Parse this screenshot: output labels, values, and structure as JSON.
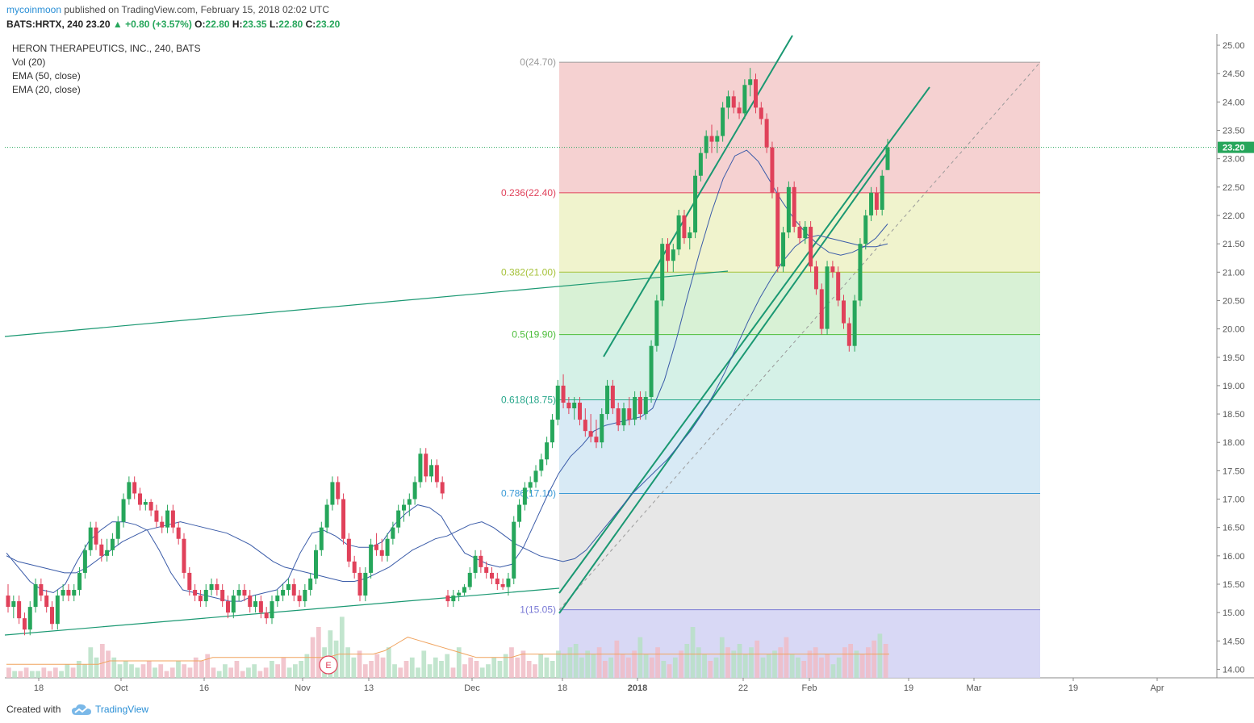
{
  "header": {
    "author": "mycoinmoon",
    "published_text": "published on TradingView.com, February 15, 2018 02:02 UTC",
    "symbol": "BATS:HRTX, 240",
    "change": "+0.80 (+3.57%)",
    "open_label": "O:",
    "open": "22.80",
    "high_label": "H:",
    "high": "23.35",
    "low_label": "L:",
    "low": "22.80",
    "close_label": "C:",
    "close": "23.20"
  },
  "legend": {
    "title": "HERON THERAPEUTICS, INC., 240, BATS",
    "indicators": [
      "Vol (20)",
      "EMA (50, close)",
      "EMA (20, close)"
    ]
  },
  "footer": {
    "created_with": "Created with",
    "brand": "TradingView"
  },
  "colors": {
    "up": "#26a65b",
    "down": "#e0415a",
    "ema": "#3a5ba8",
    "volume_ma": "#f0a35e",
    "trend": "#1a9872",
    "last_price": "#26a65b"
  },
  "chart_data": {
    "type": "candlestick",
    "symbol": "HRTX",
    "interval": "240",
    "y_axis": {
      "ylim": [
        13.85,
        25.2
      ],
      "ticks": [
        "25.00",
        "24.50",
        "24.00",
        "23.50",
        "23.00",
        "22.50",
        "22.00",
        "21.50",
        "21.00",
        "20.50",
        "20.00",
        "19.50",
        "19.00",
        "18.50",
        "18.00",
        "17.50",
        "17.00",
        "16.50",
        "16.00",
        "15.50",
        "15.00",
        "14.50",
        "14.00"
      ],
      "last_price_label": "23.20"
    },
    "x_axis": {
      "ticks": [
        "18",
        "Oct",
        "16",
        "Nov",
        "13",
        "Dec",
        "18",
        "2018",
        "22",
        "Feb",
        "19",
        "Mar",
        "19",
        "Apr"
      ]
    },
    "fibonacci": {
      "levels": [
        {
          "label": "0(24.70)",
          "ratio": 0,
          "price": 24.7,
          "color": "#9b9b9b"
        },
        {
          "label": "0.236(22.40)",
          "ratio": 0.236,
          "price": 22.4,
          "color": "#e0415a"
        },
        {
          "label": "0.382(21.00)",
          "ratio": 0.382,
          "price": 21.0,
          "color": "#a6c23a"
        },
        {
          "label": "0.5(19.90)",
          "ratio": 0.5,
          "price": 19.9,
          "color": "#4cbd3a"
        },
        {
          "label": "0.618(18.75)",
          "ratio": 0.618,
          "price": 18.75,
          "color": "#26a68a"
        },
        {
          "label": "0.786(17.10)",
          "ratio": 0.786,
          "price": 17.1,
          "color": "#3a9ad6"
        },
        {
          "label": "1(15.05)",
          "ratio": 1,
          "price": 15.05,
          "color": "#7a7ad6"
        }
      ],
      "fills": [
        "#f4cccc",
        "#eef2c8",
        "#d4f0d0",
        "#d0f0e4",
        "#d4e8f4",
        "#e4e4e4",
        "#d4d4f4"
      ]
    },
    "candles_ohlc": [
      [
        15.3,
        15.5,
        15.0,
        15.1
      ],
      [
        15.1,
        15.3,
        14.9,
        15.2
      ],
      [
        15.2,
        15.3,
        14.8,
        14.9
      ],
      [
        14.9,
        15.0,
        14.6,
        14.7
      ],
      [
        14.7,
        15.2,
        14.6,
        15.1
      ],
      [
        15.1,
        15.6,
        15.0,
        15.5
      ],
      [
        15.5,
        15.6,
        15.2,
        15.3
      ],
      [
        15.3,
        15.4,
        15.0,
        15.1
      ],
      [
        15.1,
        15.2,
        14.7,
        14.8
      ],
      [
        14.8,
        15.4,
        14.7,
        15.3
      ],
      [
        15.3,
        15.5,
        15.2,
        15.4
      ],
      [
        15.4,
        15.5,
        15.2,
        15.3
      ],
      [
        15.3,
        15.5,
        15.2,
        15.4
      ],
      [
        15.4,
        15.8,
        15.3,
        15.7
      ],
      [
        15.7,
        16.2,
        15.6,
        16.1
      ],
      [
        16.1,
        16.6,
        16.0,
        16.5
      ],
      [
        16.5,
        16.6,
        16.1,
        16.2
      ],
      [
        16.2,
        16.3,
        15.9,
        16.0
      ],
      [
        16.0,
        16.3,
        15.9,
        16.1
      ],
      [
        16.1,
        16.4,
        16.0,
        16.3
      ],
      [
        16.3,
        16.7,
        16.2,
        16.6
      ],
      [
        16.6,
        17.1,
        16.5,
        17.0
      ],
      [
        17.0,
        17.4,
        16.9,
        17.3
      ],
      [
        17.3,
        17.4,
        17.0,
        17.1
      ],
      [
        17.1,
        17.2,
        16.8,
        16.9
      ],
      [
        16.9,
        17.0,
        16.8,
        16.95
      ],
      [
        16.95,
        17.0,
        16.7,
        16.8
      ],
      [
        16.8,
        16.9,
        16.5,
        16.6
      ],
      [
        16.6,
        16.7,
        16.4,
        16.5
      ],
      [
        16.5,
        16.9,
        16.4,
        16.8
      ],
      [
        16.8,
        16.9,
        16.4,
        16.5
      ],
      [
        16.5,
        16.6,
        16.2,
        16.3
      ],
      [
        16.3,
        16.4,
        15.6,
        15.7
      ],
      [
        15.7,
        15.8,
        15.3,
        15.4
      ],
      [
        15.4,
        15.5,
        15.2,
        15.3
      ],
      [
        15.3,
        15.4,
        15.1,
        15.2
      ],
      [
        15.2,
        15.5,
        15.1,
        15.4
      ],
      [
        15.4,
        15.6,
        15.3,
        15.5
      ],
      [
        15.5,
        15.6,
        15.3,
        15.4
      ],
      [
        15.4,
        15.5,
        15.1,
        15.2
      ],
      [
        15.2,
        15.3,
        14.9,
        15.0
      ],
      [
        15.0,
        15.4,
        14.9,
        15.3
      ],
      [
        15.3,
        15.5,
        15.2,
        15.4
      ],
      [
        15.4,
        15.5,
        15.2,
        15.3
      ],
      [
        15.3,
        15.4,
        15.0,
        15.1
      ],
      [
        15.1,
        15.3,
        15.0,
        15.2
      ],
      [
        15.2,
        15.3,
        14.9,
        15.0
      ],
      [
        15.0,
        15.1,
        14.8,
        14.9
      ],
      [
        14.9,
        15.3,
        14.8,
        15.2
      ],
      [
        15.2,
        15.4,
        15.1,
        15.3
      ],
      [
        15.3,
        15.5,
        15.2,
        15.4
      ],
      [
        15.4,
        15.6,
        15.3,
        15.5
      ],
      [
        15.5,
        15.6,
        15.2,
        15.3
      ],
      [
        15.3,
        15.4,
        15.1,
        15.2
      ],
      [
        15.2,
        15.5,
        15.1,
        15.4
      ],
      [
        15.4,
        15.7,
        15.3,
        15.6
      ],
      [
        15.6,
        16.2,
        15.5,
        16.1
      ],
      [
        16.1,
        16.6,
        16.0,
        16.5
      ],
      [
        16.5,
        17.0,
        16.4,
        16.9
      ],
      [
        16.9,
        17.4,
        16.8,
        17.3
      ],
      [
        17.3,
        17.4,
        16.9,
        17.0
      ],
      [
        17.0,
        17.1,
        16.2,
        16.3
      ],
      [
        16.3,
        16.4,
        15.8,
        15.9
      ],
      [
        15.9,
        16.0,
        15.6,
        15.7
      ],
      [
        15.7,
        15.8,
        15.2,
        15.3
      ],
      [
        15.3,
        15.8,
        15.2,
        15.7
      ],
      [
        15.7,
        16.3,
        15.6,
        16.2
      ],
      [
        16.2,
        16.4,
        16.0,
        16.1
      ],
      [
        16.1,
        16.3,
        15.9,
        16.0
      ],
      [
        16.0,
        16.4,
        15.9,
        16.3
      ],
      [
        16.3,
        16.6,
        16.2,
        16.5
      ],
      [
        16.5,
        16.9,
        16.4,
        16.8
      ],
      [
        16.8,
        17.0,
        16.6,
        16.9
      ],
      [
        16.9,
        17.1,
        16.7,
        17.0
      ],
      [
        17.0,
        17.4,
        16.9,
        17.3
      ],
      [
        17.3,
        17.9,
        17.2,
        17.8
      ],
      [
        17.8,
        17.9,
        17.3,
        17.4
      ],
      [
        17.4,
        17.7,
        17.3,
        17.6
      ],
      [
        17.6,
        17.7,
        17.2,
        17.3
      ],
      [
        17.3,
        17.4,
        17.0,
        17.1
      ],
      [
        15.3,
        15.4,
        15.1,
        15.2
      ],
      [
        15.2,
        15.4,
        15.1,
        15.3
      ],
      [
        15.3,
        15.4,
        15.2,
        15.35
      ],
      [
        15.35,
        15.5,
        15.3,
        15.45
      ],
      [
        15.45,
        15.8,
        15.4,
        15.7
      ],
      [
        15.7,
        16.1,
        15.6,
        16.0
      ],
      [
        16.0,
        16.1,
        15.7,
        15.8
      ],
      [
        15.8,
        15.9,
        15.6,
        15.7
      ],
      [
        15.7,
        15.8,
        15.5,
        15.6
      ],
      [
        15.6,
        15.7,
        15.4,
        15.5
      ],
      [
        15.5,
        15.6,
        15.4,
        15.45
      ],
      [
        15.45,
        15.7,
        15.3,
        15.6
      ],
      [
        15.6,
        16.7,
        15.5,
        16.6
      ],
      [
        16.6,
        17.0,
        16.5,
        16.9
      ],
      [
        16.9,
        17.3,
        16.8,
        17.2
      ],
      [
        17.2,
        17.4,
        17.1,
        17.3
      ],
      [
        17.3,
        17.6,
        17.2,
        17.5
      ],
      [
        17.5,
        17.8,
        17.4,
        17.7
      ],
      [
        17.7,
        18.1,
        17.6,
        18.0
      ],
      [
        18.0,
        18.5,
        17.9,
        18.4
      ],
      [
        18.4,
        19.1,
        18.3,
        19.0
      ],
      [
        19.0,
        19.2,
        18.6,
        18.7
      ],
      [
        18.7,
        18.8,
        18.5,
        18.6
      ],
      [
        18.6,
        18.8,
        18.4,
        18.7
      ],
      [
        18.7,
        18.8,
        18.3,
        18.4
      ],
      [
        18.4,
        18.6,
        18.1,
        18.2
      ],
      [
        18.2,
        18.5,
        18.0,
        18.1
      ],
      [
        18.1,
        18.4,
        17.9,
        18.0
      ],
      [
        18.0,
        18.6,
        17.9,
        18.5
      ],
      [
        18.5,
        19.1,
        18.4,
        19.0
      ],
      [
        19.0,
        19.1,
        18.5,
        18.6
      ],
      [
        18.6,
        18.7,
        18.2,
        18.3
      ],
      [
        18.3,
        18.7,
        18.2,
        18.6
      ],
      [
        18.6,
        18.8,
        18.3,
        18.4
      ],
      [
        18.4,
        18.9,
        18.3,
        18.8
      ],
      [
        18.8,
        18.9,
        18.4,
        18.5
      ],
      [
        18.5,
        18.9,
        18.4,
        18.8
      ],
      [
        18.8,
        19.8,
        18.7,
        19.7
      ],
      [
        19.7,
        20.6,
        19.6,
        20.5
      ],
      [
        20.5,
        21.6,
        20.4,
        21.5
      ],
      [
        21.5,
        21.6,
        21.0,
        21.2
      ],
      [
        21.2,
        21.5,
        21.0,
        21.4
      ],
      [
        21.4,
        22.1,
        21.3,
        22.0
      ],
      [
        22.0,
        22.1,
        21.5,
        21.6
      ],
      [
        21.6,
        21.8,
        21.4,
        21.7
      ],
      [
        21.7,
        22.8,
        21.6,
        22.7
      ],
      [
        22.7,
        23.2,
        22.6,
        23.1
      ],
      [
        23.1,
        23.5,
        23.0,
        23.4
      ],
      [
        23.4,
        23.6,
        23.1,
        23.3
      ],
      [
        23.3,
        23.5,
        23.1,
        23.4
      ],
      [
        23.4,
        24.0,
        23.3,
        23.9
      ],
      [
        23.9,
        24.2,
        23.7,
        24.1
      ],
      [
        24.1,
        24.2,
        23.8,
        23.9
      ],
      [
        23.9,
        24.0,
        23.7,
        23.8
      ],
      [
        23.8,
        24.4,
        23.7,
        24.3
      ],
      [
        24.3,
        24.6,
        24.1,
        24.4
      ],
      [
        24.4,
        24.5,
        23.8,
        23.9
      ],
      [
        23.9,
        24.0,
        23.6,
        23.7
      ],
      [
        23.7,
        23.8,
        23.1,
        23.2
      ],
      [
        23.2,
        23.3,
        22.3,
        22.4
      ],
      [
        22.4,
        22.5,
        21.0,
        21.1
      ],
      [
        21.1,
        21.8,
        21.0,
        21.7
      ],
      [
        21.7,
        22.6,
        21.6,
        22.5
      ],
      [
        22.5,
        22.6,
        21.7,
        21.8
      ],
      [
        21.8,
        21.9,
        21.5,
        21.6
      ],
      [
        21.6,
        21.9,
        21.5,
        21.8
      ],
      [
        21.8,
        21.9,
        21.0,
        21.1
      ],
      [
        21.1,
        21.2,
        20.6,
        20.7
      ],
      [
        20.7,
        20.8,
        19.9,
        20.0
      ],
      [
        20.0,
        21.2,
        19.9,
        21.1
      ],
      [
        21.1,
        21.2,
        20.9,
        21.0
      ],
      [
        21.0,
        21.1,
        20.4,
        20.5
      ],
      [
        20.5,
        20.6,
        20.0,
        20.1
      ],
      [
        20.1,
        20.2,
        19.6,
        19.7
      ],
      [
        19.7,
        20.6,
        19.6,
        20.5
      ],
      [
        20.5,
        21.6,
        20.4,
        21.5
      ],
      [
        21.5,
        22.1,
        21.4,
        22.0
      ],
      [
        22.0,
        22.5,
        21.9,
        22.4
      ],
      [
        22.4,
        22.5,
        22.0,
        22.1
      ],
      [
        22.1,
        22.8,
        22.0,
        22.7
      ],
      [
        22.8,
        23.35,
        22.8,
        23.2
      ]
    ],
    "ema_50": [
      16.0,
      15.9,
      15.85,
      15.8,
      15.75,
      15.7,
      15.7,
      15.8,
      15.95,
      16.1,
      16.25,
      16.35,
      16.45,
      16.5,
      16.55,
      16.6,
      16.55,
      16.5,
      16.45,
      16.4,
      16.3,
      16.2,
      16.05,
      15.9,
      15.8,
      15.75,
      15.7,
      15.65,
      15.6,
      15.55,
      15.55,
      15.6,
      15.7,
      15.8,
      15.95,
      16.1,
      16.2,
      16.3,
      16.35,
      16.45,
      16.55,
      16.6,
      16.5,
      16.35,
      16.2,
      16.1,
      16.0,
      15.95,
      15.9,
      15.95,
      16.1,
      16.35,
      16.6,
      16.85,
      17.1,
      17.3,
      17.5,
      17.7,
      17.95,
      18.2,
      18.5,
      18.85,
      19.25,
      19.7,
      20.15,
      20.55,
      20.9,
      21.2,
      21.45,
      21.6,
      21.65,
      21.6,
      21.55,
      21.5,
      21.45,
      21.45,
      21.5
    ],
    "ema_20": [
      16.05,
      15.8,
      15.55,
      15.4,
      15.35,
      15.5,
      15.9,
      16.25,
      16.45,
      16.6,
      16.6,
      16.55,
      16.45,
      16.1,
      15.7,
      15.4,
      15.35,
      15.3,
      15.25,
      15.2,
      15.2,
      15.3,
      15.35,
      15.4,
      15.6,
      16.05,
      16.4,
      16.45,
      16.35,
      16.2,
      16.15,
      16.15,
      16.25,
      16.55,
      16.75,
      16.9,
      16.85,
      16.7,
      16.35,
      16.05,
      15.95,
      15.85,
      15.8,
      15.85,
      16.15,
      16.6,
      17.05,
      17.45,
      17.75,
      17.95,
      18.2,
      18.3,
      18.35,
      18.4,
      18.45,
      18.6,
      19.1,
      19.8,
      20.6,
      21.35,
      22.05,
      22.65,
      23.05,
      23.15,
      22.95,
      22.6,
      22.25,
      21.95,
      21.7,
      21.5,
      21.35,
      21.3,
      21.35,
      21.45,
      21.6,
      21.85
    ],
    "volume": [
      3,
      2,
      2,
      3,
      2,
      2,
      3,
      2,
      3,
      2,
      4,
      3,
      5,
      4,
      9,
      6,
      10,
      8,
      6,
      4,
      5,
      4,
      3,
      4,
      5,
      3,
      4,
      2,
      3,
      5,
      4,
      3,
      6,
      5,
      7,
      3,
      2,
      4,
      3,
      5,
      2,
      3,
      4,
      2,
      3,
      5,
      4,
      6,
      3,
      4,
      5,
      7,
      12,
      15,
      9,
      14,
      11,
      18,
      9,
      6,
      8,
      4,
      5,
      7,
      6,
      9,
      4,
      3,
      5,
      6,
      3,
      8,
      4,
      6,
      5,
      7,
      3,
      9,
      4,
      6,
      5,
      3,
      4,
      6,
      5,
      7,
      9,
      6,
      8,
      5,
      4,
      7,
      6,
      5,
      8,
      7,
      9,
      10,
      6,
      8,
      7,
      9,
      5,
      6,
      11,
      7,
      6,
      8,
      12,
      7,
      6,
      9,
      5,
      4,
      6,
      8,
      10,
      15,
      9,
      7,
      5,
      6,
      12,
      9,
      8,
      10,
      7,
      9,
      11,
      6,
      7,
      8,
      9,
      12,
      7,
      6,
      5,
      8,
      9,
      6,
      7,
      4,
      6,
      9,
      10,
      8,
      7,
      9,
      11,
      13,
      10
    ],
    "volume_ma": [
      4,
      4,
      4,
      4,
      4,
      4,
      4,
      4,
      4,
      5,
      5,
      5,
      5,
      5,
      5,
      5,
      5,
      5,
      6,
      6,
      6,
      6,
      6,
      6,
      6,
      6,
      6,
      6,
      6,
      7,
      7,
      7,
      7,
      8,
      10,
      12,
      11,
      10,
      9,
      8,
      7,
      6,
      6,
      6,
      6,
      7,
      7,
      7,
      7,
      7,
      7,
      7,
      7,
      7,
      7,
      7,
      7,
      7,
      7,
      7,
      7,
      7,
      7,
      7,
      7,
      7,
      7,
      7,
      7,
      7,
      7,
      7,
      7,
      7,
      7,
      7,
      7,
      7
    ],
    "earnings_marker": "E"
  }
}
